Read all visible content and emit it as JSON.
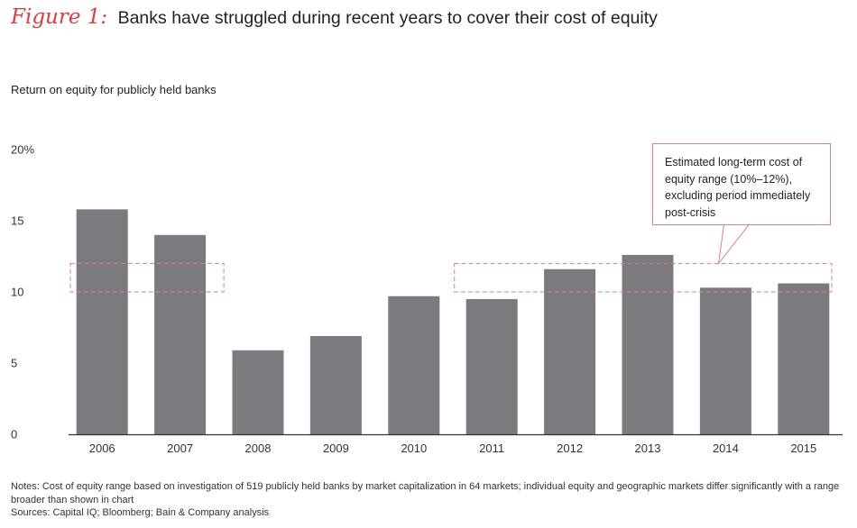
{
  "header": {
    "figure_label": "Figure 1:",
    "title": "Banks have struggled during recent years to cover their cost of equity"
  },
  "chart_data": {
    "type": "bar",
    "title": "Banks have struggled during recent years to cover their cost of equity",
    "ylabel": "Return on equity for publicly held banks",
    "xlabel": "",
    "categories": [
      "2006",
      "2007",
      "2008",
      "2009",
      "2010",
      "2011",
      "2012",
      "2013",
      "2014",
      "2015"
    ],
    "values": [
      15.8,
      14.0,
      5.9,
      6.9,
      9.7,
      9.5,
      11.6,
      12.6,
      10.3,
      10.6
    ],
    "ylim": [
      0,
      20
    ],
    "yticks": [
      {
        "value": 0,
        "label": "0"
      },
      {
        "value": 5,
        "label": "5"
      },
      {
        "value": 10,
        "label": "10"
      },
      {
        "value": 15,
        "label": "15"
      },
      {
        "value": 20,
        "label": "20%"
      }
    ],
    "cost_of_equity_range": {
      "low": 10,
      "high": 12,
      "segments": [
        {
          "from": "2006",
          "to": "2007"
        },
        {
          "from": "2011",
          "to": "2015"
        }
      ]
    },
    "annotation": "Estimated long-term cost of equity range (10%–12%), excluding period immediately post-crisis",
    "colors": {
      "bar": "#7b7b7f",
      "range": "#e97b7b",
      "axis": "#333333"
    },
    "grid": false
  },
  "footer": {
    "notes": "Notes: Cost of equity range based on investigation of 519 publicly held banks by market capitalization in 64 markets; individual equity and geographic markets differ significantly with a range broader than shown in chart",
    "sources": "Sources: Capital IQ; Bloomberg; Bain & Company analysis"
  }
}
